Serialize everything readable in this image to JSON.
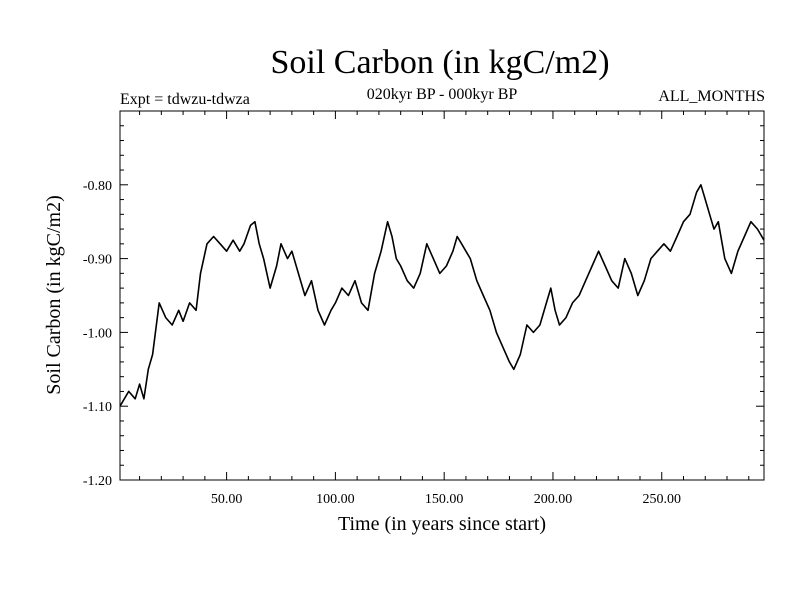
{
  "header": {
    "title": "Soil Carbon (in kgC/m2)",
    "experiment": "Expt = tdwzu-tdwza",
    "period": "020kyr BP - 000kyr BP",
    "months": "ALL_MONTHS"
  },
  "chart_data": {
    "type": "line",
    "title": "Soil Carbon (in kgC/m2)",
    "xlabel": "Time (in years since start)",
    "ylabel": "Soil Carbon (in kgC/m2)",
    "xlim": [
      1,
      297
    ],
    "ylim": [
      -1.2,
      -0.7
    ],
    "xticks": [
      50,
      100,
      150,
      200,
      250
    ],
    "xtick_labels": [
      "50.00",
      "100.00",
      "150.00",
      "200.00",
      "250.00"
    ],
    "yticks": [
      -1.2,
      -1.1,
      -1.0,
      -0.9,
      -0.8
    ],
    "ytick_labels": [
      "-1.20",
      "-1.10",
      "-1.00",
      "-0.90",
      "-0.80"
    ],
    "grid": false,
    "color": "#000000",
    "series": [
      {
        "x": [
          1,
          5,
          8,
          10,
          12,
          14,
          16,
          19,
          22,
          25,
          28,
          30,
          33,
          36,
          38,
          41,
          44,
          47,
          50,
          53,
          56,
          58,
          61,
          63,
          65,
          67,
          70,
          73,
          75,
          78,
          80,
          83,
          86,
          89,
          92,
          95,
          98,
          100,
          103,
          106,
          109,
          112,
          115,
          118,
          121,
          124,
          126,
          128,
          130,
          133,
          136,
          139,
          142,
          145,
          148,
          151,
          154,
          156,
          158,
          160,
          162,
          165,
          168,
          171,
          174,
          177,
          180,
          182,
          185,
          188,
          191,
          194,
          197,
          199,
          201,
          203,
          206,
          209,
          212,
          215,
          218,
          221,
          224,
          227,
          230,
          233,
          236,
          239,
          242,
          245,
          248,
          251,
          254,
          257,
          260,
          263,
          266,
          268,
          270,
          272,
          274,
          276,
          279,
          282,
          285,
          288,
          291,
          294,
          297
        ],
        "y": [
          -1.1,
          -1.08,
          -1.09,
          -1.07,
          -1.09,
          -1.05,
          -1.03,
          -0.96,
          -0.98,
          -0.99,
          -0.97,
          -0.985,
          -0.96,
          -0.97,
          -0.92,
          -0.88,
          -0.87,
          -0.88,
          -0.89,
          -0.875,
          -0.89,
          -0.88,
          -0.855,
          -0.85,
          -0.88,
          -0.9,
          -0.94,
          -0.91,
          -0.88,
          -0.9,
          -0.89,
          -0.92,
          -0.95,
          -0.93,
          -0.97,
          -0.99,
          -0.97,
          -0.96,
          -0.94,
          -0.95,
          -0.93,
          -0.96,
          -0.97,
          -0.92,
          -0.89,
          -0.85,
          -0.87,
          -0.9,
          -0.91,
          -0.93,
          -0.94,
          -0.92,
          -0.88,
          -0.9,
          -0.92,
          -0.91,
          -0.89,
          -0.87,
          -0.88,
          -0.89,
          -0.9,
          -0.93,
          -0.95,
          -0.97,
          -1.0,
          -1.02,
          -1.04,
          -1.05,
          -1.03,
          -0.99,
          -1.0,
          -0.99,
          -0.96,
          -0.94,
          -0.97,
          -0.99,
          -0.98,
          -0.96,
          -0.95,
          -0.93,
          -0.91,
          -0.89,
          -0.91,
          -0.93,
          -0.94,
          -0.9,
          -0.92,
          -0.95,
          -0.93,
          -0.9,
          -0.89,
          -0.88,
          -0.89,
          -0.87,
          -0.85,
          -0.84,
          -0.81,
          -0.8,
          -0.82,
          -0.84,
          -0.86,
          -0.85,
          -0.9,
          -0.92,
          -0.89,
          -0.87,
          -0.85,
          -0.86,
          -0.875
        ]
      }
    ]
  }
}
